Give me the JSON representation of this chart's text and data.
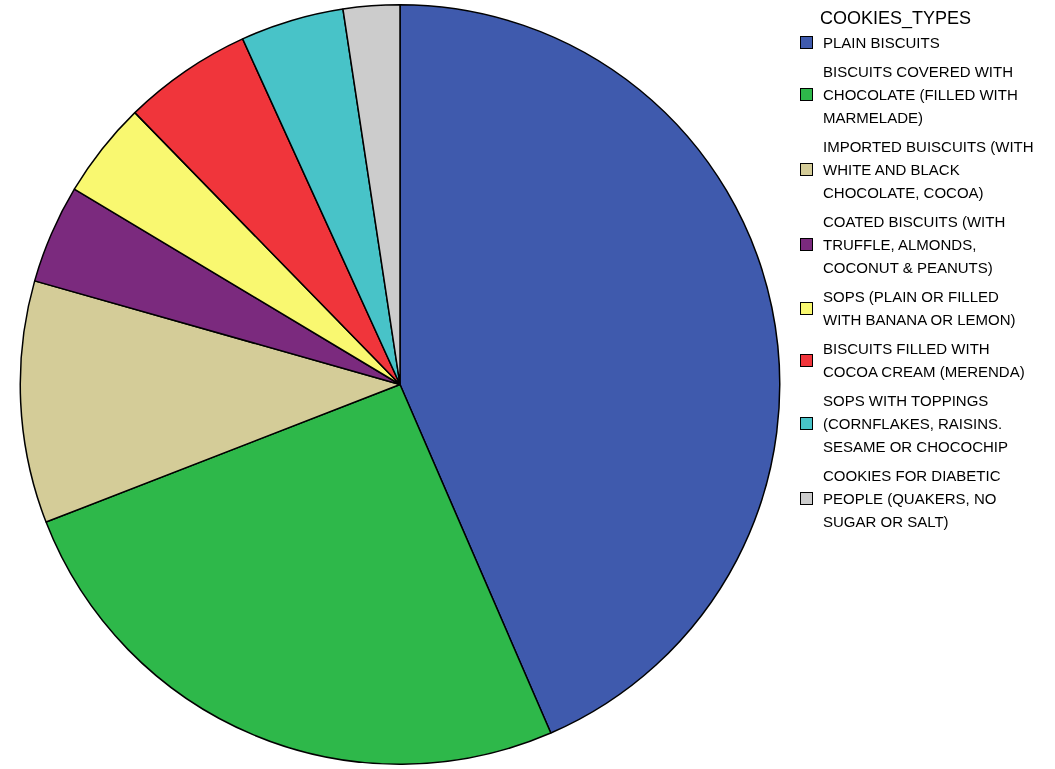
{
  "chart_data": {
    "type": "pie",
    "legend_title": "COOKIES_TYPES",
    "legend": "right",
    "categories": [
      "PLAIN BISCUITS",
      "BISCUITS COVERED WITH CHOCOLATE (FILLED WITH MARMELADE)",
      "IMPORTED BUISCUITS (WITH WHITE AND BLACK CHOCOLATE, COCOA)",
      "COATED BISCUITS (WITH TRUFFLE, ALMONDS, COCONUT & PEANUTS)",
      "SOPS (PLAIN OR FILLED WITH BANANA OR LEMON)",
      "BISCUITS FILLED WITH COCOA CREAM (MERENDA)",
      "SOPS WITH TOPPINGS (CORNFLAKES, RAISINS. SESAME OR CHOCOCHIP",
      "COOKIES FOR DIABETIC PEOPLE (QUAKERS, NO SUGAR OR SALT)"
    ],
    "values": [
      43.5,
      25.6,
      10.3,
      4.2,
      4.1,
      5.5,
      4.4,
      2.4
    ],
    "colors": [
      "#3f5aad",
      "#2eb84a",
      "#d4cc98",
      "#7b2a7e",
      "#f9f870",
      "#f0353b",
      "#48c3c8",
      "#cccccc"
    ]
  }
}
